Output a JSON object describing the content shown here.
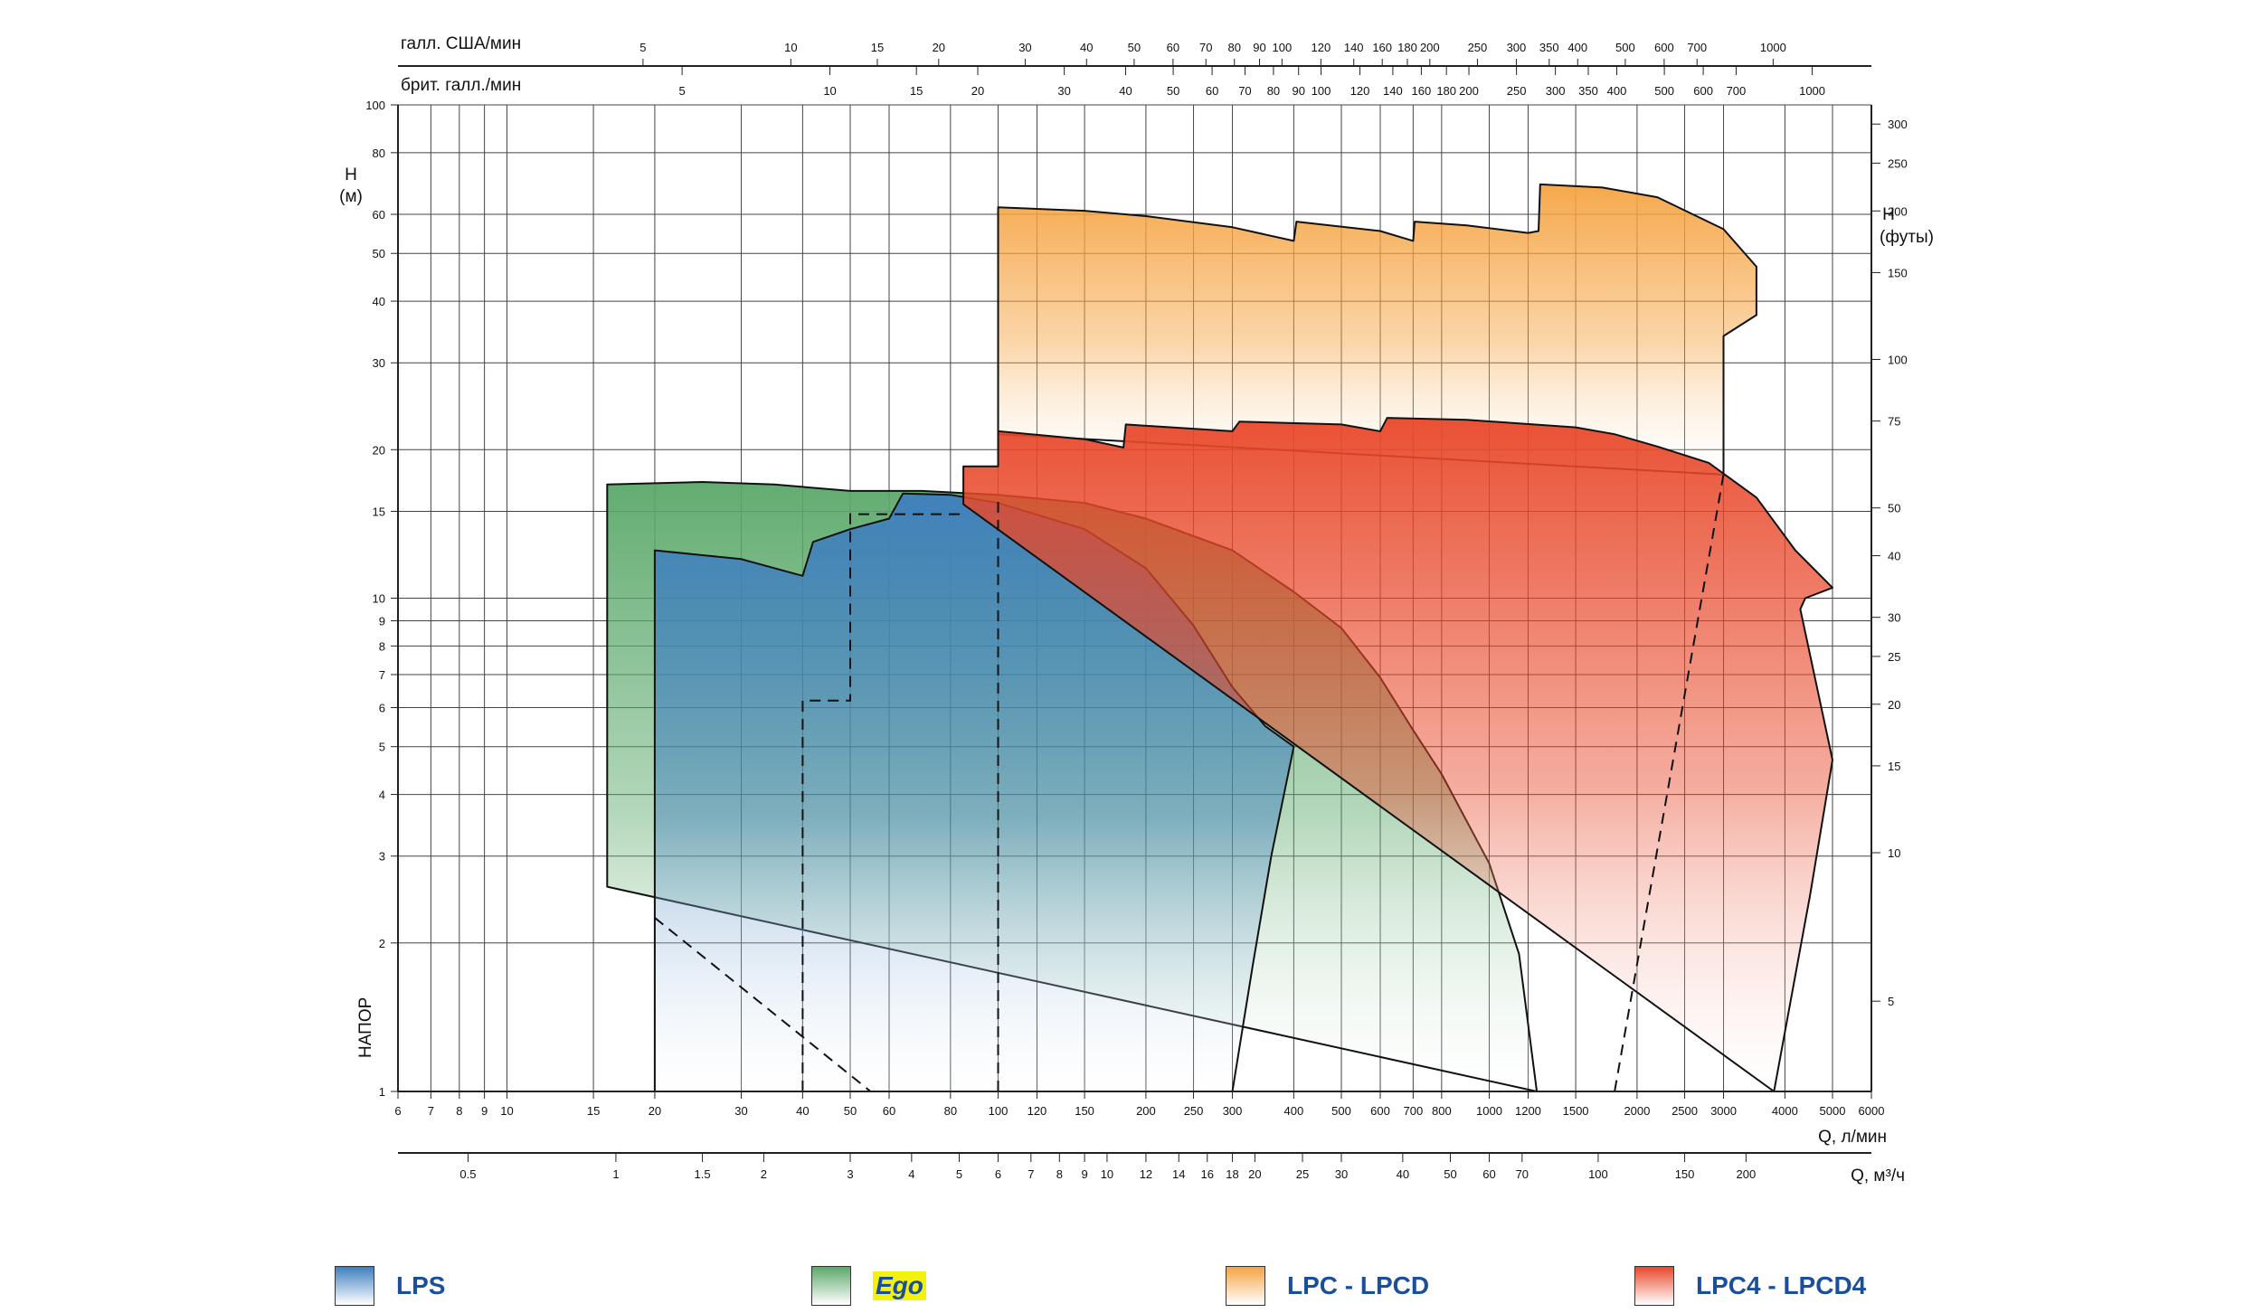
{
  "chart_data": {
    "type": "area",
    "title": "",
    "xlabel": "Q, л/мин",
    "x2label": "Q, м³/ч",
    "top_axis1_label": "галл. США/мин",
    "top_axis2_label": "брит. галл./мин",
    "ylabel": "H\n(м)",
    "ylabel_side": "НАПОР",
    "y2label": "H\n(футы)",
    "x_scale": "log",
    "y_scale": "log",
    "xlim": [
      6,
      6000
    ],
    "ylim": [
      1,
      100
    ],
    "grid": true,
    "x_ticks": [
      "6",
      "7",
      "8",
      "9",
      "10",
      "15",
      "20",
      "30",
      "40",
      "50",
      "60",
      "80",
      "100",
      "120",
      "150",
      "200",
      "250",
      "300",
      "400",
      "500",
      "600",
      "700",
      "800",
      "1000",
      "1200",
      "1500",
      "2000",
      "2500",
      "3000",
      "4000",
      "5000",
      "6000"
    ],
    "y_ticks": [
      "1",
      "2",
      "3",
      "4",
      "5",
      "6",
      "7",
      "8",
      "9",
      "10",
      "15",
      "20",
      "30",
      "40",
      "50",
      "60",
      "80",
      "100"
    ],
    "us_gpm_ticks": [
      "5",
      "10",
      "15",
      "20",
      "30",
      "40",
      "50",
      "60",
      "70",
      "80",
      "90",
      "100",
      "120",
      "140",
      "160",
      "180",
      "200",
      "250",
      "300",
      "350",
      "400",
      "500",
      "600",
      "700",
      "1000"
    ],
    "uk_gpm_ticks": [
      "5",
      "10",
      "15",
      "20",
      "30",
      "40",
      "50",
      "60",
      "70",
      "80",
      "90",
      "100",
      "120",
      "140",
      "160",
      "180",
      "200",
      "250",
      "300",
      "350",
      "400",
      "500",
      "600",
      "700",
      "1000"
    ],
    "m3h_ticks": [
      "0.5",
      "1",
      "1.5",
      "2",
      "3",
      "4",
      "5",
      "6",
      "7",
      "8",
      "9",
      "10",
      "12",
      "14",
      "16",
      "18",
      "20",
      "25",
      "30",
      "40",
      "50",
      "60",
      "70",
      "100",
      "150",
      "200"
    ],
    "ft_ticks": [
      "5",
      "10",
      "15",
      "20",
      "25",
      "30",
      "40",
      "50",
      "75",
      "100",
      "150",
      "200",
      "250",
      "300"
    ],
    "series": [
      {
        "name": "LPS",
        "color": "#3f7fbf",
        "polygon": [
          [
            20,
            1
          ],
          [
            20,
            12.5
          ],
          [
            30,
            12.0
          ],
          [
            40,
            11.1
          ],
          [
            42,
            13.0
          ],
          [
            50,
            13.8
          ],
          [
            60,
            14.5
          ],
          [
            64,
            16.3
          ],
          [
            80,
            16.2
          ],
          [
            100,
            15.6
          ],
          [
            150,
            13.8
          ],
          [
            200,
            11.5
          ],
          [
            250,
            8.8
          ],
          [
            300,
            6.6
          ],
          [
            350,
            5.5
          ],
          [
            400,
            5.0
          ],
          [
            360,
            3.0
          ],
          [
            330,
            1.8
          ],
          [
            300,
            1.0
          ]
        ],
        "dashed": [
          [
            [
              40,
              1
            ],
            [
              40,
              6.2
            ],
            [
              50,
              6.2
            ],
            [
              50,
              14.8
            ],
            [
              85,
              14.8
            ]
          ],
          [
            [
              100,
              1
            ],
            [
              100,
              16.0
            ]
          ]
        ]
      },
      {
        "name": "Ego",
        "color": "#5aa86a",
        "polygon": [
          [
            16,
            2.6
          ],
          [
            16,
            17.0
          ],
          [
            25,
            17.2
          ],
          [
            35,
            17.0
          ],
          [
            50,
            16.5
          ],
          [
            70,
            16.5
          ],
          [
            100,
            16.2
          ],
          [
            150,
            15.6
          ],
          [
            200,
            14.5
          ],
          [
            300,
            12.5
          ],
          [
            400,
            10.3
          ],
          [
            500,
            8.7
          ],
          [
            600,
            6.9
          ],
          [
            700,
            5.4
          ],
          [
            800,
            4.4
          ],
          [
            1000,
            2.9
          ],
          [
            1150,
            1.9
          ],
          [
            1250,
            1.0
          ]
        ],
        "dashed": [
          [
            [
              20,
              2.25
            ],
            [
              55,
              1.0
            ]
          ]
        ]
      },
      {
        "name": "LPC - LPCD",
        "color": "#f5a443",
        "polygon": [
          [
            100,
            21.5
          ],
          [
            100,
            62.0
          ],
          [
            150,
            61.0
          ],
          [
            200,
            59.5
          ],
          [
            300,
            56.5
          ],
          [
            400,
            53.0
          ],
          [
            405,
            58.0
          ],
          [
            600,
            55.5
          ],
          [
            700,
            53.0
          ],
          [
            705,
            58.0
          ],
          [
            900,
            57.0
          ],
          [
            1200,
            55.0
          ],
          [
            1260,
            55.5
          ],
          [
            1270,
            69.0
          ],
          [
            1700,
            68.0
          ],
          [
            2200,
            65.0
          ],
          [
            3000,
            56.0
          ],
          [
            3500,
            47.0
          ],
          [
            3500,
            37.5
          ],
          [
            3000,
            34.0
          ],
          [
            3000,
            17.8
          ]
        ],
        "dashed": [
          [
            [
              3000,
              17.8
            ],
            [
              1800,
              1.0
            ]
          ]
        ]
      },
      {
        "name": "LPC4 - LPCD4",
        "color": "#e8482a",
        "polygon": [
          [
            85,
            15.5
          ],
          [
            85,
            18.5
          ],
          [
            100,
            18.5
          ],
          [
            100,
            21.8
          ],
          [
            150,
            21.0
          ],
          [
            180,
            20.2
          ],
          [
            182,
            22.5
          ],
          [
            300,
            21.8
          ],
          [
            310,
            22.8
          ],
          [
            500,
            22.5
          ],
          [
            600,
            21.8
          ],
          [
            620,
            23.2
          ],
          [
            900,
            23.0
          ],
          [
            1500,
            22.2
          ],
          [
            1800,
            21.5
          ],
          [
            2200,
            20.3
          ],
          [
            2800,
            18.8
          ],
          [
            3500,
            16.0
          ],
          [
            4200,
            12.5
          ],
          [
            5000,
            10.5
          ],
          [
            4400,
            10.0
          ],
          [
            4300,
            9.5
          ],
          [
            5000,
            4.7
          ],
          [
            4500,
            2.5
          ],
          [
            3800,
            1.0
          ]
        ]
      }
    ],
    "legend": [
      "LPS",
      "Ego",
      "LPC - LPCD",
      "LPC4 - LPCD4"
    ],
    "legend_position": "bottom"
  }
}
